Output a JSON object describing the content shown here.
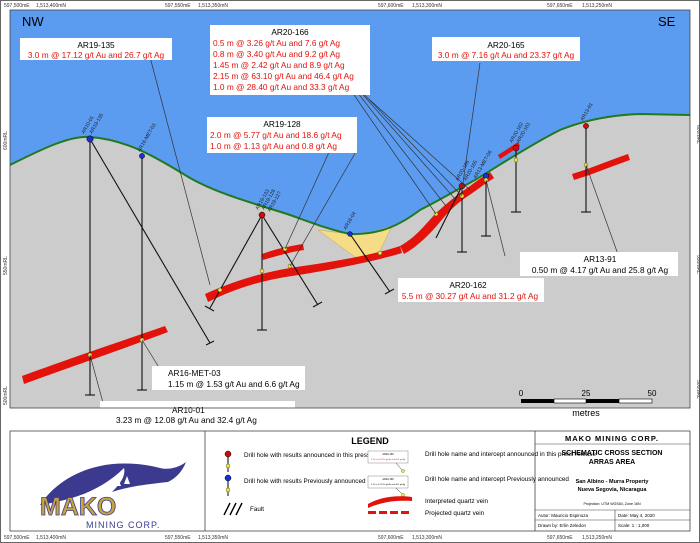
{
  "directions": {
    "left": "NW",
    "right": "SE"
  },
  "top_coords": [
    {
      "e": "597,500mE",
      "n": "1,513,400mN"
    },
    {
      "e": "597,550mE",
      "n": "1,513,350mN"
    },
    {
      "e": "597,600mE",
      "n": "1,513,300mN"
    },
    {
      "e": "597,650mE",
      "n": "1,513,250mN"
    }
  ],
  "bottom_coords": [
    {
      "e": "597,500mE",
      "n": "1,513,400mN"
    },
    {
      "e": "597,550mE",
      "n": "1,513,350mN"
    },
    {
      "e": "597,600mE",
      "n": "1,513,300mN"
    },
    {
      "e": "597,650mE",
      "n": "1,513,250mN"
    }
  ],
  "elevations": [
    "600mRL",
    "550mRL",
    "500mRL"
  ],
  "callouts": {
    "ar19_135": {
      "title": "AR19-135",
      "lines": [
        "3.0 m @ 17.12 g/t Au and 26.7 g/t Ag"
      ]
    },
    "ar20_166": {
      "title": "AR20-166",
      "lines": [
        "0.5 m @ 3.26 g/t Au and 7.6 g/t Ag",
        "0.8 m @ 3.40 g/t Au and 9.2 g/t Ag",
        "1.45 m @ 2.42 g/t Au and 8.9 g/t Ag",
        "2.15 m @ 63.10 g/t Au and 46.4 g/t Ag",
        "1.0 m @ 28.40 g/t Au and 33.3 g/t Ag"
      ]
    },
    "ar20_165": {
      "title": "AR20-165",
      "lines": [
        "3.0 m @ 7.16 g/t Au and 23.37 g/t Ag"
      ]
    },
    "ar19_128": {
      "title": "AR19-128",
      "lines": [
        "2.0 m @ 5.77 g/t Au and 18.6 g/t Ag",
        "1.0 m @ 1.13 g/t Au and 0.8 g/t Ag"
      ]
    },
    "ar13_91": {
      "title": "AR13-91",
      "lines": [
        "0.50 m @ 4.17 g/t Au and 25.8 g/t Ag"
      ]
    },
    "ar20_162": {
      "title": "AR20-162",
      "lines": [
        "5.5 m @ 30.27 g/t Au and 31.2 g/t Ag"
      ]
    },
    "ar16_met_03": {
      "title": "AR16-MET-03",
      "lines": [
        "1.15 m @ 1.53 g/t Au and 6.6 g/t Ag"
      ]
    },
    "ar10_01": {
      "title": "AR10-01",
      "lines": [
        "3.23 m @ 12.08 g/t Au and 32.4 g/t Ag"
      ]
    }
  },
  "hole_labels": [
    "AR10-01",
    "AR19-135",
    "AR16-MET-03",
    "AR19-133",
    "AR19-128",
    "AR19-127",
    "AR16-04",
    "AR20-166",
    "AR20-165",
    "AR13-MET-06",
    "AR20-162",
    "AR20-161",
    "AR13-91"
  ],
  "scale": {
    "ticks": [
      "0",
      "25",
      "50"
    ],
    "unit": "metres"
  },
  "legend": {
    "title": "LEGEND",
    "items": [
      "Drill hole with results announced in this press release",
      "Drill hole with results Previously announced",
      "Fault",
      "Drill hole name and intercept announced in this press release",
      "Drill hole name and intercept Previously announced",
      "Interpreted quartz vein",
      "Projected quartz vein"
    ],
    "sample_hole_name": "AR20-166",
    "sample_hole_value": "2.15 m @ 63.10 g/t Au and 46.4 g/t Ag"
  },
  "logo": {
    "word": "MAKO",
    "sub": "MINING CORP."
  },
  "title_block": {
    "company": "MAKO MINING CORP.",
    "title_line1": "SCHEMATIC CROSS SECTION",
    "title_line2": "ARRAS AREA",
    "property_line1": "San Albino - Murra Property",
    "property_line2": "Nueva Segovia, Nicaragua",
    "projection": "Projection: UTM WGS84, Zone 16N",
    "author": "Autor: Mauricio Espinoza",
    "date": "Date: May 4, 2020",
    "drawn": "Drawn by: Erlin Zeledon",
    "scale": "Scale: 1 : 1,000"
  },
  "colors": {
    "sky": "#5b9bf0",
    "ground": "#cccccc",
    "vein": "#e3120b",
    "topo": "#1f7a1f",
    "oxide": "#f5dc86"
  }
}
